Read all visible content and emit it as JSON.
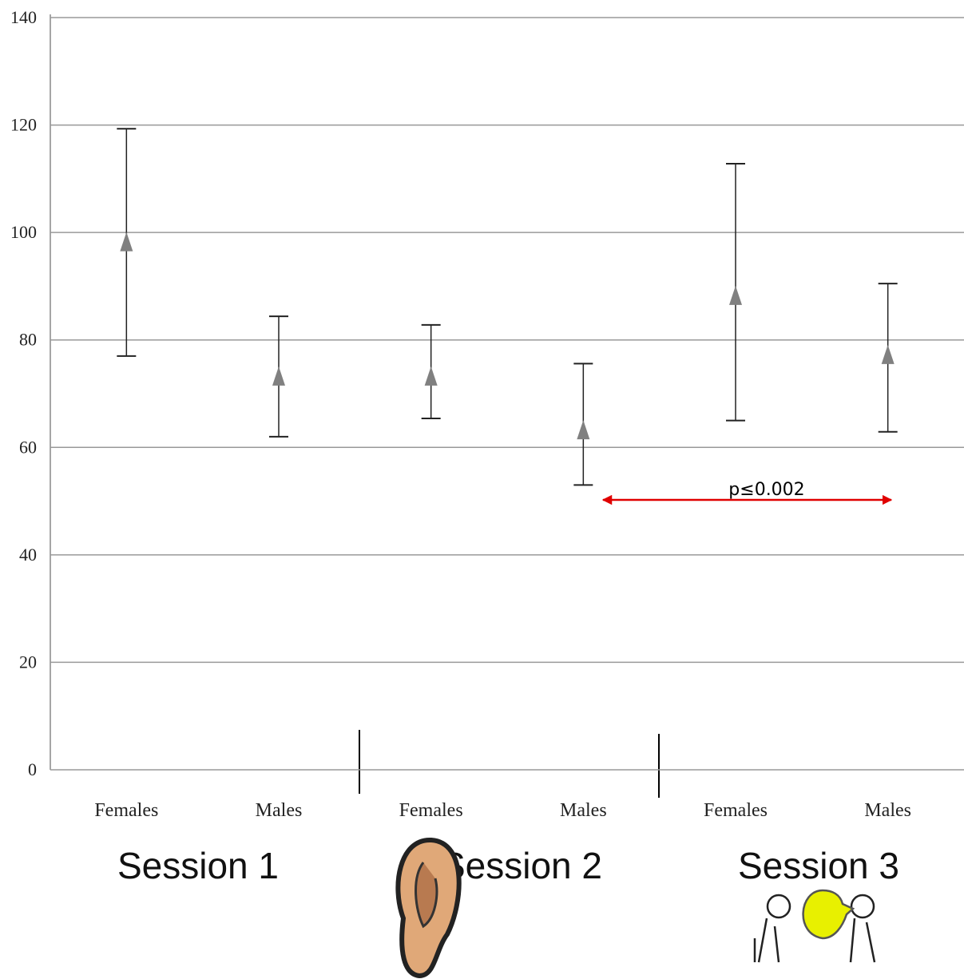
{
  "chart_data": {
    "type": "errorbar",
    "categories": [
      "Females",
      "Males",
      "Females",
      "Males",
      "Females",
      "Males"
    ],
    "values": [
      98,
      73,
      73,
      63,
      88,
      77
    ],
    "lower": [
      77,
      62,
      65.4,
      53,
      65,
      62.9
    ],
    "upper": [
      119.3,
      84.4,
      82.8,
      75.6,
      112.8,
      90.5
    ],
    "color": "#808080",
    "ylim": [
      0,
      140
    ],
    "yticks": [
      0,
      20,
      40,
      60,
      80,
      100,
      120,
      140
    ],
    "grid": true,
    "groups": [
      "Session 1",
      "Session 2",
      "Session 3"
    ],
    "annotation": "p≤0.002"
  }
}
